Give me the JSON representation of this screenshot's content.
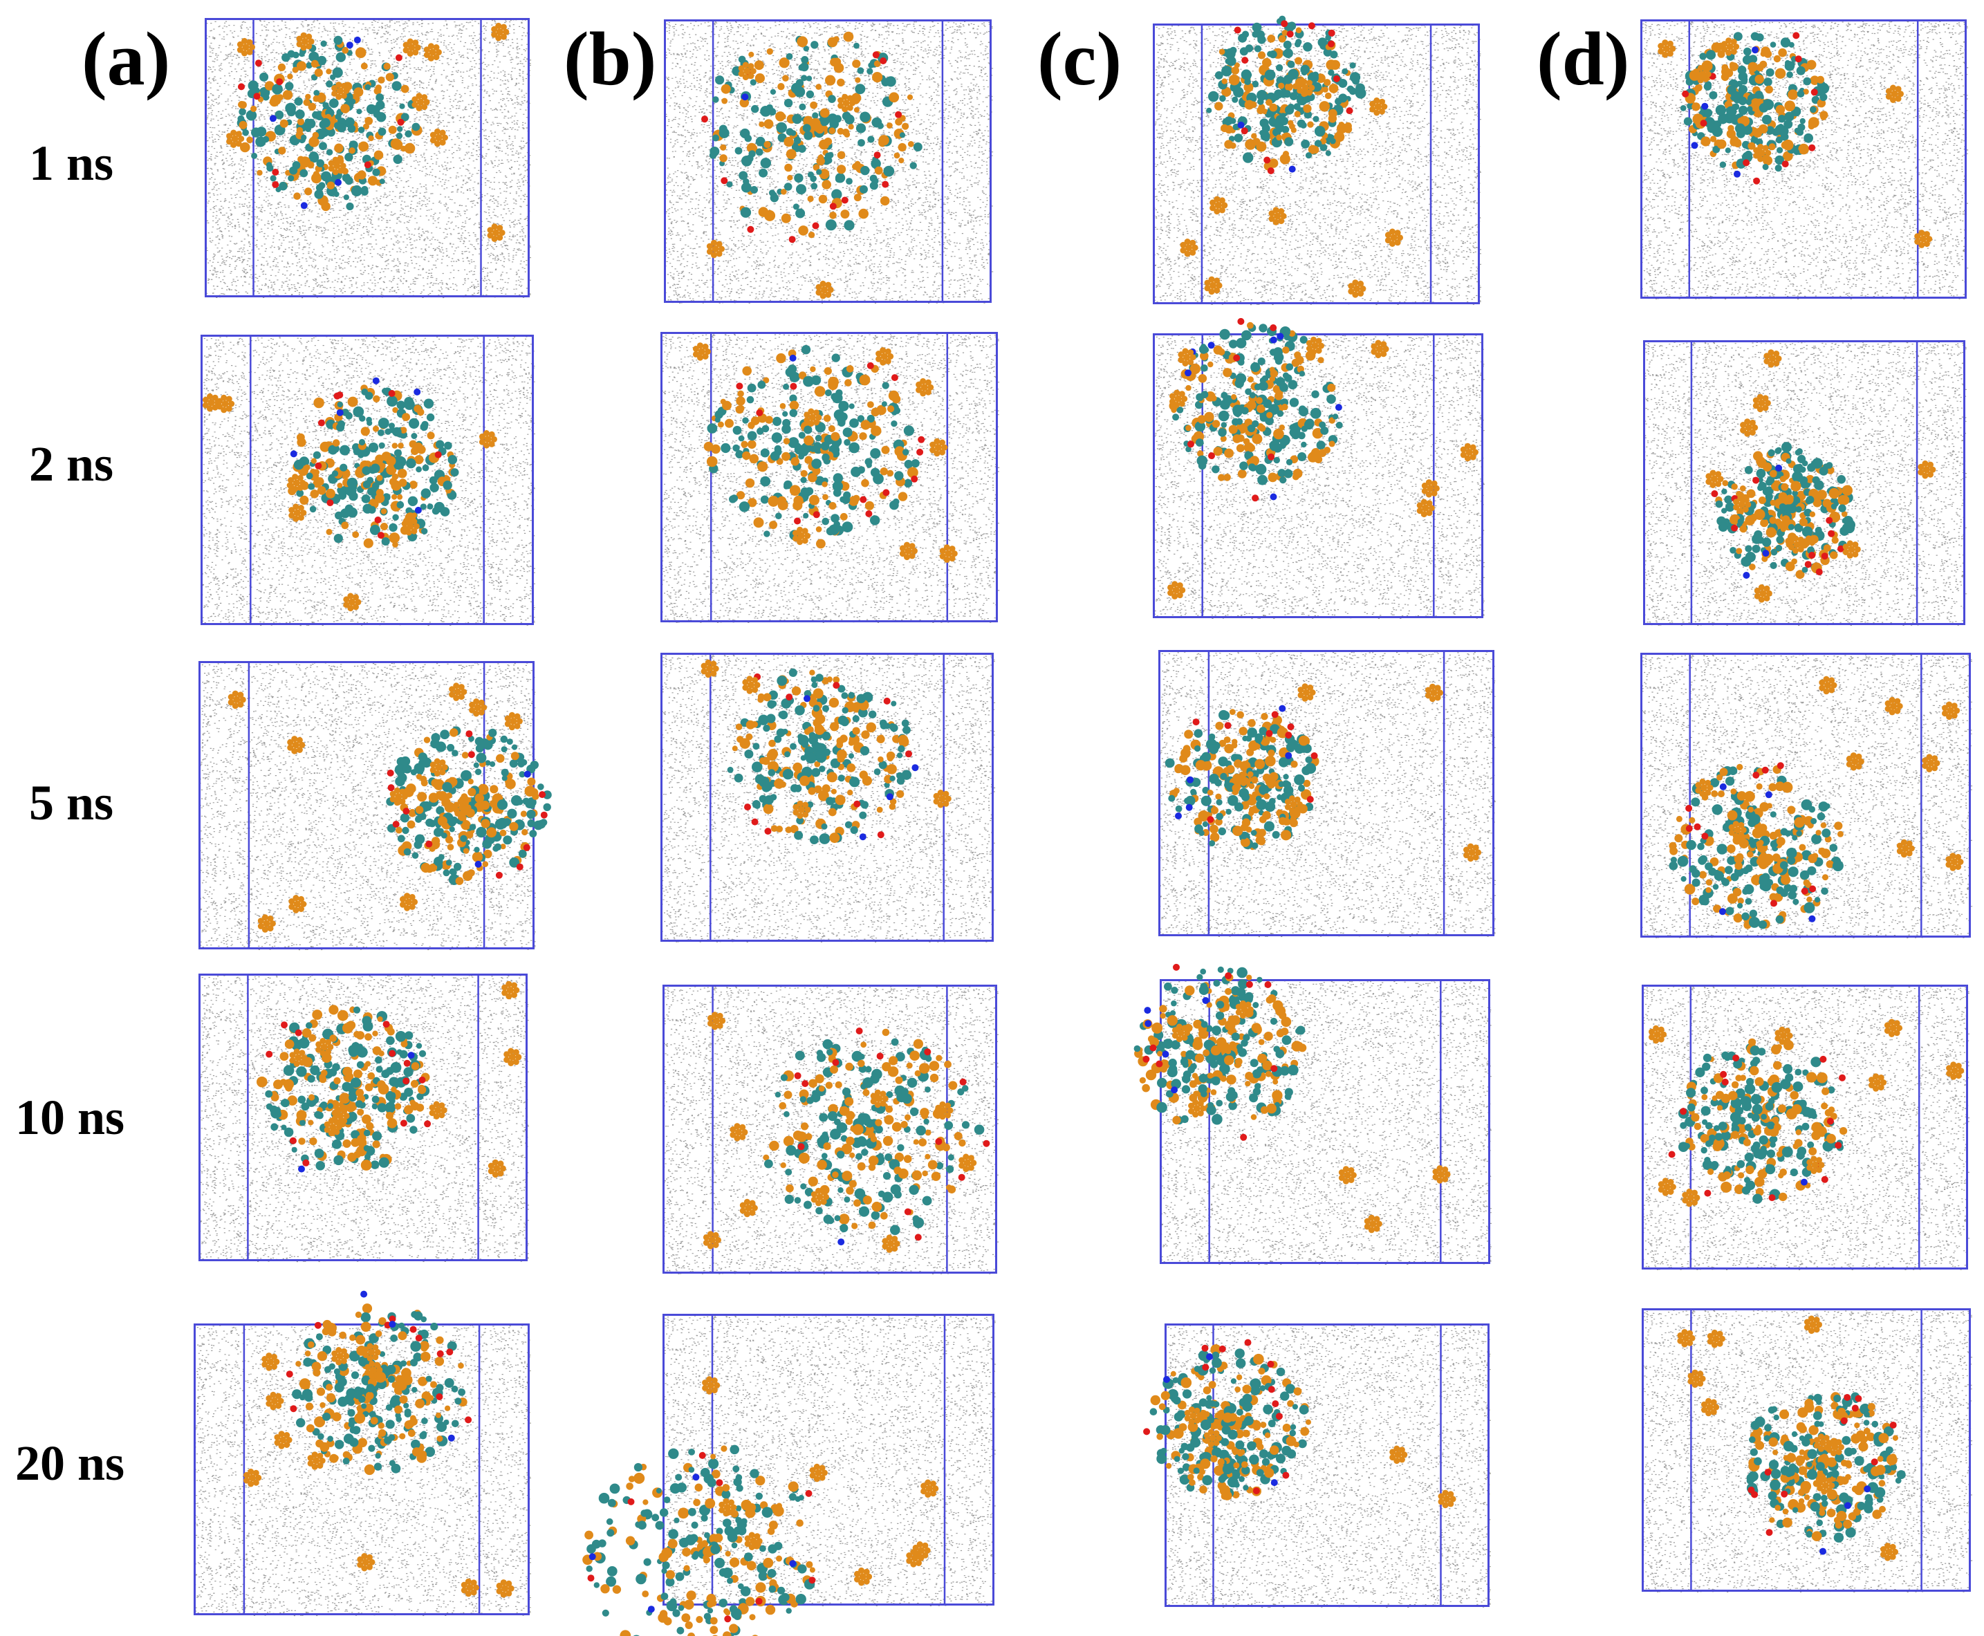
{
  "figure": {
    "columns": [
      {
        "id": "a",
        "label": "(a)"
      },
      {
        "id": "b",
        "label": "(b)"
      },
      {
        "id": "c",
        "label": "(c)"
      },
      {
        "id": "d",
        "label": "(d)"
      }
    ],
    "rows": [
      {
        "id": "1ns",
        "label": "1 ns"
      },
      {
        "id": "2ns",
        "label": "2 ns"
      },
      {
        "id": "5ns",
        "label": "5 ns"
      },
      {
        "id": "10ns",
        "label": "10 ns"
      },
      {
        "id": "20ns",
        "label": "20 ns"
      }
    ],
    "colors": {
      "box_outline": "#4a4ad8",
      "solvent_dots": "#8a8a8a",
      "cluster_main": "#2f8a8a",
      "cluster_secondary": "#e08a1a",
      "oxygen": "#e01a1a",
      "nitrogen": "#1a2ae0"
    }
  }
}
